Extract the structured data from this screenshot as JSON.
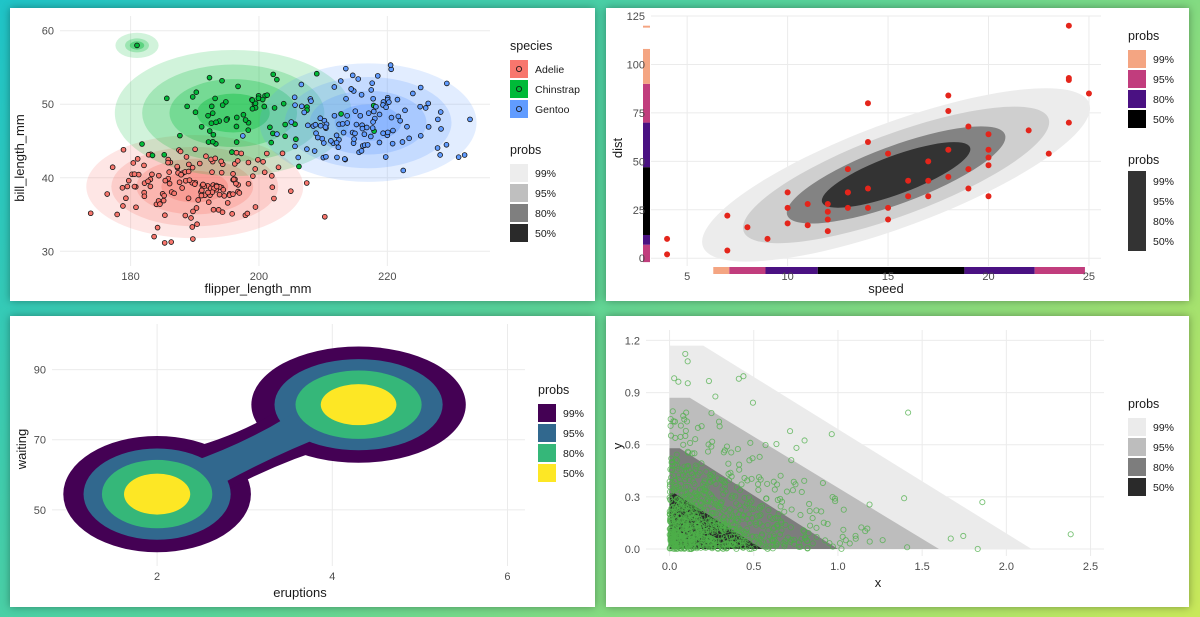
{
  "chart_data": [
    {
      "id": "penguins",
      "type": "scatter",
      "xlabel": "flipper_length_mm",
      "ylabel": "bill_length_mm",
      "xlim": [
        169,
        236
      ],
      "ylim": [
        28,
        62
      ],
      "xticks": [
        180,
        200,
        220
      ],
      "yticks": [
        30,
        40,
        50,
        60
      ],
      "legend": {
        "species_title": "species",
        "species": [
          {
            "name": "Adelie",
            "color": "#f8766d"
          },
          {
            "name": "Chinstrap",
            "color": "#00ba38"
          },
          {
            "name": "Gentoo",
            "color": "#619cff"
          }
        ],
        "probs_title": "probs",
        "probs": [
          {
            "label": "99%",
            "color": "#ededed"
          },
          {
            "label": "95%",
            "color": "#bfbfbf"
          },
          {
            "label": "80%",
            "color": "#7f7f7f"
          },
          {
            "label": "50%",
            "color": "#2a2a2a"
          }
        ]
      },
      "series": [
        {
          "name": "Adelie",
          "center": [
            190,
            38.8
          ],
          "spread": [
            6.5,
            2.7
          ],
          "n": 150
        },
        {
          "name": "Chinstrap",
          "center": [
            196,
            48.8
          ],
          "spread": [
            7.1,
            3.3
          ],
          "n": 68
        },
        {
          "name": "Gentoo",
          "center": [
            217,
            47.5
          ],
          "spread": [
            6.5,
            3.1
          ],
          "n": 123
        }
      ]
    },
    {
      "id": "cars",
      "type": "scatter",
      "xlabel": "speed",
      "ylabel": "dist",
      "xlim": [
        3.2,
        25.6
      ],
      "ylim": [
        -4,
        125
      ],
      "xticks": [
        5,
        10,
        15,
        20,
        25
      ],
      "yticks": [
        0,
        25,
        50,
        75,
        100,
        125
      ],
      "x": [
        4,
        4,
        7,
        7,
        8,
        9,
        10,
        10,
        10,
        11,
        11,
        12,
        12,
        12,
        12,
        13,
        13,
        13,
        13,
        14,
        14,
        14,
        14,
        15,
        15,
        15,
        16,
        16,
        17,
        17,
        17,
        18,
        18,
        18,
        18,
        19,
        19,
        19,
        20,
        20,
        20,
        20,
        20,
        22,
        23,
        24,
        24,
        24,
        24,
        25
      ],
      "y": [
        2,
        10,
        4,
        22,
        16,
        10,
        18,
        26,
        34,
        17,
        28,
        14,
        20,
        24,
        28,
        26,
        34,
        34,
        46,
        26,
        36,
        60,
        80,
        20,
        26,
        54,
        32,
        40,
        32,
        40,
        50,
        42,
        56,
        76,
        84,
        36,
        46,
        68,
        32,
        48,
        52,
        56,
        64,
        66,
        54,
        70,
        92,
        93,
        120,
        85
      ],
      "point_color": "#e4251b",
      "legend": {
        "probs_title_1": "probs",
        "probs_1": [
          {
            "label": "99%",
            "color": "#f4a582"
          },
          {
            "label": "95%",
            "color": "#c13d7d"
          },
          {
            "label": "80%",
            "color": "#4a1182"
          },
          {
            "label": "50%",
            "color": "#000000"
          }
        ],
        "probs_title_2": "probs",
        "probs_2": [
          {
            "label": "99%",
            "color": "#e4e4e4"
          },
          {
            "label": "95%",
            "color": "#bdbdbd"
          },
          {
            "label": "80%",
            "color": "#7d7d7d"
          },
          {
            "label": "50%",
            "color": "#333333"
          }
        ]
      }
    },
    {
      "id": "faithful",
      "type": "area",
      "xlabel": "eruptions",
      "ylabel": "waiting",
      "xlim": [
        0.8,
        6.2
      ],
      "ylim": [
        34,
        103
      ],
      "xticks": [
        2,
        4,
        6
      ],
      "yticks": [
        50,
        70,
        90
      ],
      "legend": {
        "probs_title": "probs",
        "probs": [
          {
            "label": "99%",
            "color": "#440154"
          },
          {
            "label": "95%",
            "color": "#31688e"
          },
          {
            "label": "80%",
            "color": "#35b779"
          },
          {
            "label": "50%",
            "color": "#fde725"
          }
        ]
      }
    },
    {
      "id": "exponential",
      "type": "scatter",
      "xlabel": "x",
      "ylabel": "y",
      "xlim": [
        -0.14,
        2.58
      ],
      "ylim": [
        -0.04,
        1.26
      ],
      "xticks": [
        0.0,
        0.5,
        1.0,
        1.5,
        2.0,
        2.5
      ],
      "yticks": [
        0.0,
        0.3,
        0.6,
        0.9,
        1.2
      ],
      "tick_labels_x": [
        "0.0",
        "0.5",
        "1.0",
        "1.5",
        "2.0",
        "2.5"
      ],
      "tick_labels_y": [
        "0.0",
        "0.3",
        "0.6",
        "0.9",
        "1.2"
      ],
      "band_limits": [
        0.58,
        0.87,
        1.6,
        2.15
      ],
      "n_points": 900,
      "point_color": "#4daf4a",
      "legend": {
        "probs_title": "probs",
        "probs": [
          {
            "label": "99%",
            "color": "#ebebeb"
          },
          {
            "label": "95%",
            "color": "#bdbdbd"
          },
          {
            "label": "80%",
            "color": "#7d7d7d"
          },
          {
            "label": "50%",
            "color": "#2a2a2a"
          }
        ]
      }
    }
  ]
}
